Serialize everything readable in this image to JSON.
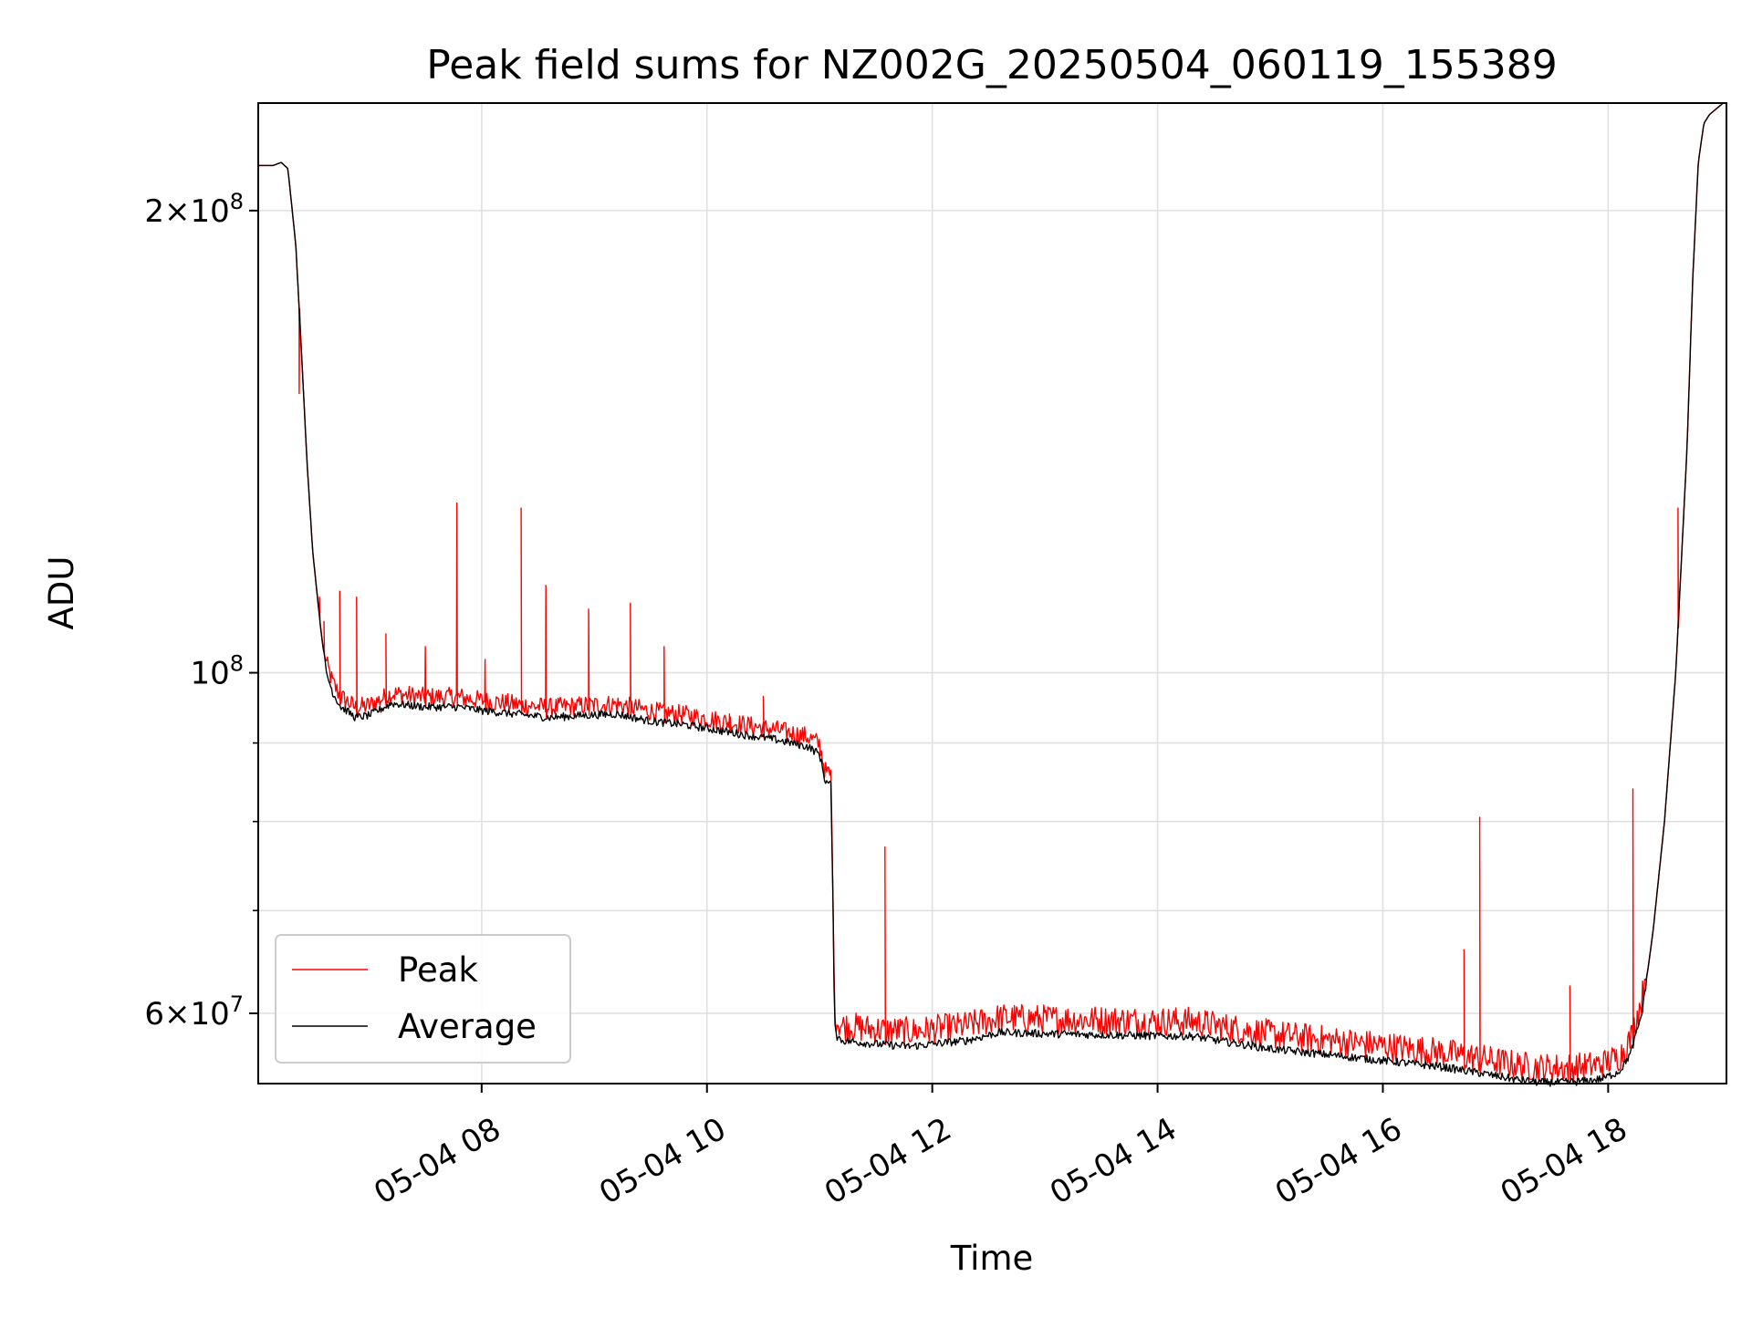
{
  "chart_data": {
    "type": "line",
    "title": "Peak field sums for NZ002G_20250504_060119_155389",
    "xlabel": "Time",
    "ylabel": "ADU",
    "y_scale": "log",
    "ylim": [
      54000000,
      235000000
    ],
    "xlim": [
      "05-04 06:01",
      "05-04 19:03"
    ],
    "grid": true,
    "legend_position": "lower-left",
    "x_ticks": [
      "05-04 08",
      "05-04 10",
      "05-04 12",
      "05-04 14",
      "05-04 16",
      "05-04 18"
    ],
    "x_tick_hours": [
      8,
      10,
      12,
      14,
      16,
      18
    ],
    "y_major_ticks": [
      {
        "value": 60000000,
        "mantissa": "6",
        "exponent": "7"
      },
      {
        "value": 100000000,
        "mantissa": "",
        "exponent": "8"
      },
      {
        "value": 200000000,
        "mantissa": "2",
        "exponent": "8"
      }
    ],
    "y_minor_ticks": [
      70000000,
      80000000,
      90000000
    ],
    "times_label_note": "",
    "series": [
      {
        "name": "Average",
        "color": "#000000",
        "x_hours": [
          6.02,
          6.15,
          6.22,
          6.28,
          6.35,
          6.4,
          6.45,
          6.5,
          6.57,
          6.62,
          6.68,
          6.75,
          6.8,
          6.88,
          7.0,
          7.2,
          7.5,
          7.8,
          8.0,
          8.3,
          8.6,
          8.9,
          9.2,
          9.5,
          9.8,
          10.0,
          10.3,
          10.6,
          10.9,
          11.0,
          11.05,
          11.1,
          11.12,
          11.13,
          11.15,
          11.2,
          11.5,
          11.8,
          12.0,
          12.3,
          12.6,
          13.0,
          13.5,
          14.0,
          14.3,
          14.6,
          15.0,
          15.5,
          16.0,
          16.5,
          16.9,
          17.2,
          17.4,
          17.6,
          17.8,
          17.95,
          18.1,
          18.2,
          18.3,
          18.4,
          18.5,
          18.6,
          18.7,
          18.75,
          18.8,
          18.85,
          18.9,
          19.05
        ],
        "values": [
          214000000,
          214000000,
          215000000,
          213000000,
          190000000,
          162000000,
          137000000,
          120000000,
          107000000,
          100000000,
          97000000,
          95000000,
          94500000,
          93500000,
          93800000,
          95500000,
          95000000,
          95000000,
          94500000,
          94000000,
          93500000,
          93800000,
          94000000,
          93000000,
          92500000,
          92000000,
          91200000,
          90500000,
          89500000,
          88500000,
          85000000,
          84500000,
          70000000,
          60000000,
          58000000,
          57600000,
          57300000,
          57100000,
          57300000,
          57600000,
          58300000,
          58200000,
          58100000,
          58000000,
          58000000,
          57500000,
          56900000,
          56400000,
          55900000,
          55400000,
          54800000,
          54300000,
          54100000,
          54100000,
          54200000,
          54400000,
          55000000,
          56500000,
          60000000,
          68000000,
          80000000,
          100000000,
          140000000,
          180000000,
          215000000,
          228000000,
          231000000,
          236000000
        ]
      },
      {
        "name": "Peak",
        "color": "#ff0000",
        "spikes_hours": [
          6.38,
          6.56,
          6.6,
          6.74,
          6.89,
          7.15,
          7.5,
          7.78,
          8.03,
          8.35,
          8.57,
          8.95,
          9.32,
          9.62,
          10.2,
          10.5,
          11.58,
          16.72,
          16.86,
          17.66,
          18.22,
          18.62
        ],
        "spikes_values": [
          152000000,
          112000000,
          108000000,
          113000000,
          112000000,
          106000000,
          104000000,
          129000000,
          102000000,
          128000000,
          114000000,
          110000000,
          111000000,
          104000000,
          94000000,
          96500000,
          77000000,
          66000000,
          80500000,
          62500000,
          84000000,
          128000000
        ]
      }
    ]
  }
}
